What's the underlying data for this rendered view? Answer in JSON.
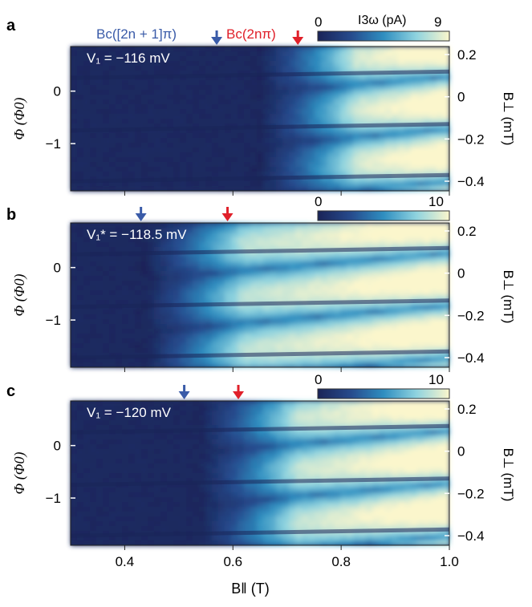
{
  "chart_data": [
    {
      "type": "heatmap",
      "panel_label": "a",
      "voltage_label": "V₁ = −116 mV",
      "colorbar": {
        "label": "I3ω (pA)",
        "min": 0,
        "max": 9,
        "ticks": [
          "0",
          "9"
        ]
      },
      "arrows": [
        {
          "name": "Bc([2n + 1]π)",
          "x": 0.57,
          "color": "#3a5ba8"
        },
        {
          "name": "Bc(2nπ)",
          "x": 0.72,
          "color": "#e0202a"
        }
      ],
      "xlim": [
        0.3,
        1.0
      ],
      "ylabel": "Φ (Φ0)",
      "ylim": [
        -1.9,
        0.85
      ],
      "yticks": [
        "0",
        "−1"
      ],
      "right_ylabel": "B⊥ (mT)",
      "right_yticks": [
        "0.2",
        "0",
        "−0.2",
        "−0.4"
      ],
      "onset_field": 0.71
    },
    {
      "type": "heatmap",
      "panel_label": "b",
      "voltage_label": "V₁* = −118.5 mV",
      "colorbar": {
        "label": "I3ω (pA)",
        "min": 0,
        "max": 10,
        "ticks": [
          "0",
          "10"
        ]
      },
      "arrows": [
        {
          "name": "Bc([2n + 1]π)",
          "x": 0.43,
          "color": "#3a5ba8"
        },
        {
          "name": "Bc(2nπ)",
          "x": 0.59,
          "color": "#e0202a"
        }
      ],
      "xlim": [
        0.3,
        1.0
      ],
      "ylabel": "Φ (Φ0)",
      "ylim": [
        -1.9,
        0.85
      ],
      "yticks": [
        "0",
        "−1"
      ],
      "right_ylabel": "B⊥ (mT)",
      "right_yticks": [
        "0.2",
        "0",
        "−0.2",
        "−0.4"
      ],
      "onset_field": 0.5
    },
    {
      "type": "heatmap",
      "panel_label": "c",
      "voltage_label": "V₁ = −120 mV",
      "colorbar": {
        "label": "I3ω (pA)",
        "min": 0,
        "max": 10,
        "ticks": [
          "0",
          "10"
        ]
      },
      "arrows": [
        {
          "name": "Bc([2n + 1]π)",
          "x": 0.51,
          "color": "#3a5ba8"
        },
        {
          "name": "Bc(2nπ)",
          "x": 0.61,
          "color": "#e0202a"
        }
      ],
      "xlim": [
        0.3,
        1.0
      ],
      "xlabel": "B‖ (T)",
      "xticks": [
        "0.4",
        "0.6",
        "0.8",
        "1.0"
      ],
      "ylabel": "Φ (Φ0)",
      "ylim": [
        -1.9,
        0.85
      ],
      "yticks": [
        "0",
        "−1"
      ],
      "right_ylabel": "B⊥ (mT)",
      "right_yticks": [
        "0.2",
        "0",
        "−0.2",
        "−0.4"
      ],
      "onset_field": 0.6
    }
  ],
  "colors": {
    "low": "#1c2a5e",
    "mid": "#2f8ec0",
    "high": "#fbf6cc",
    "blue_arrow": "#3a5ba8",
    "red_arrow": "#e0202a"
  }
}
